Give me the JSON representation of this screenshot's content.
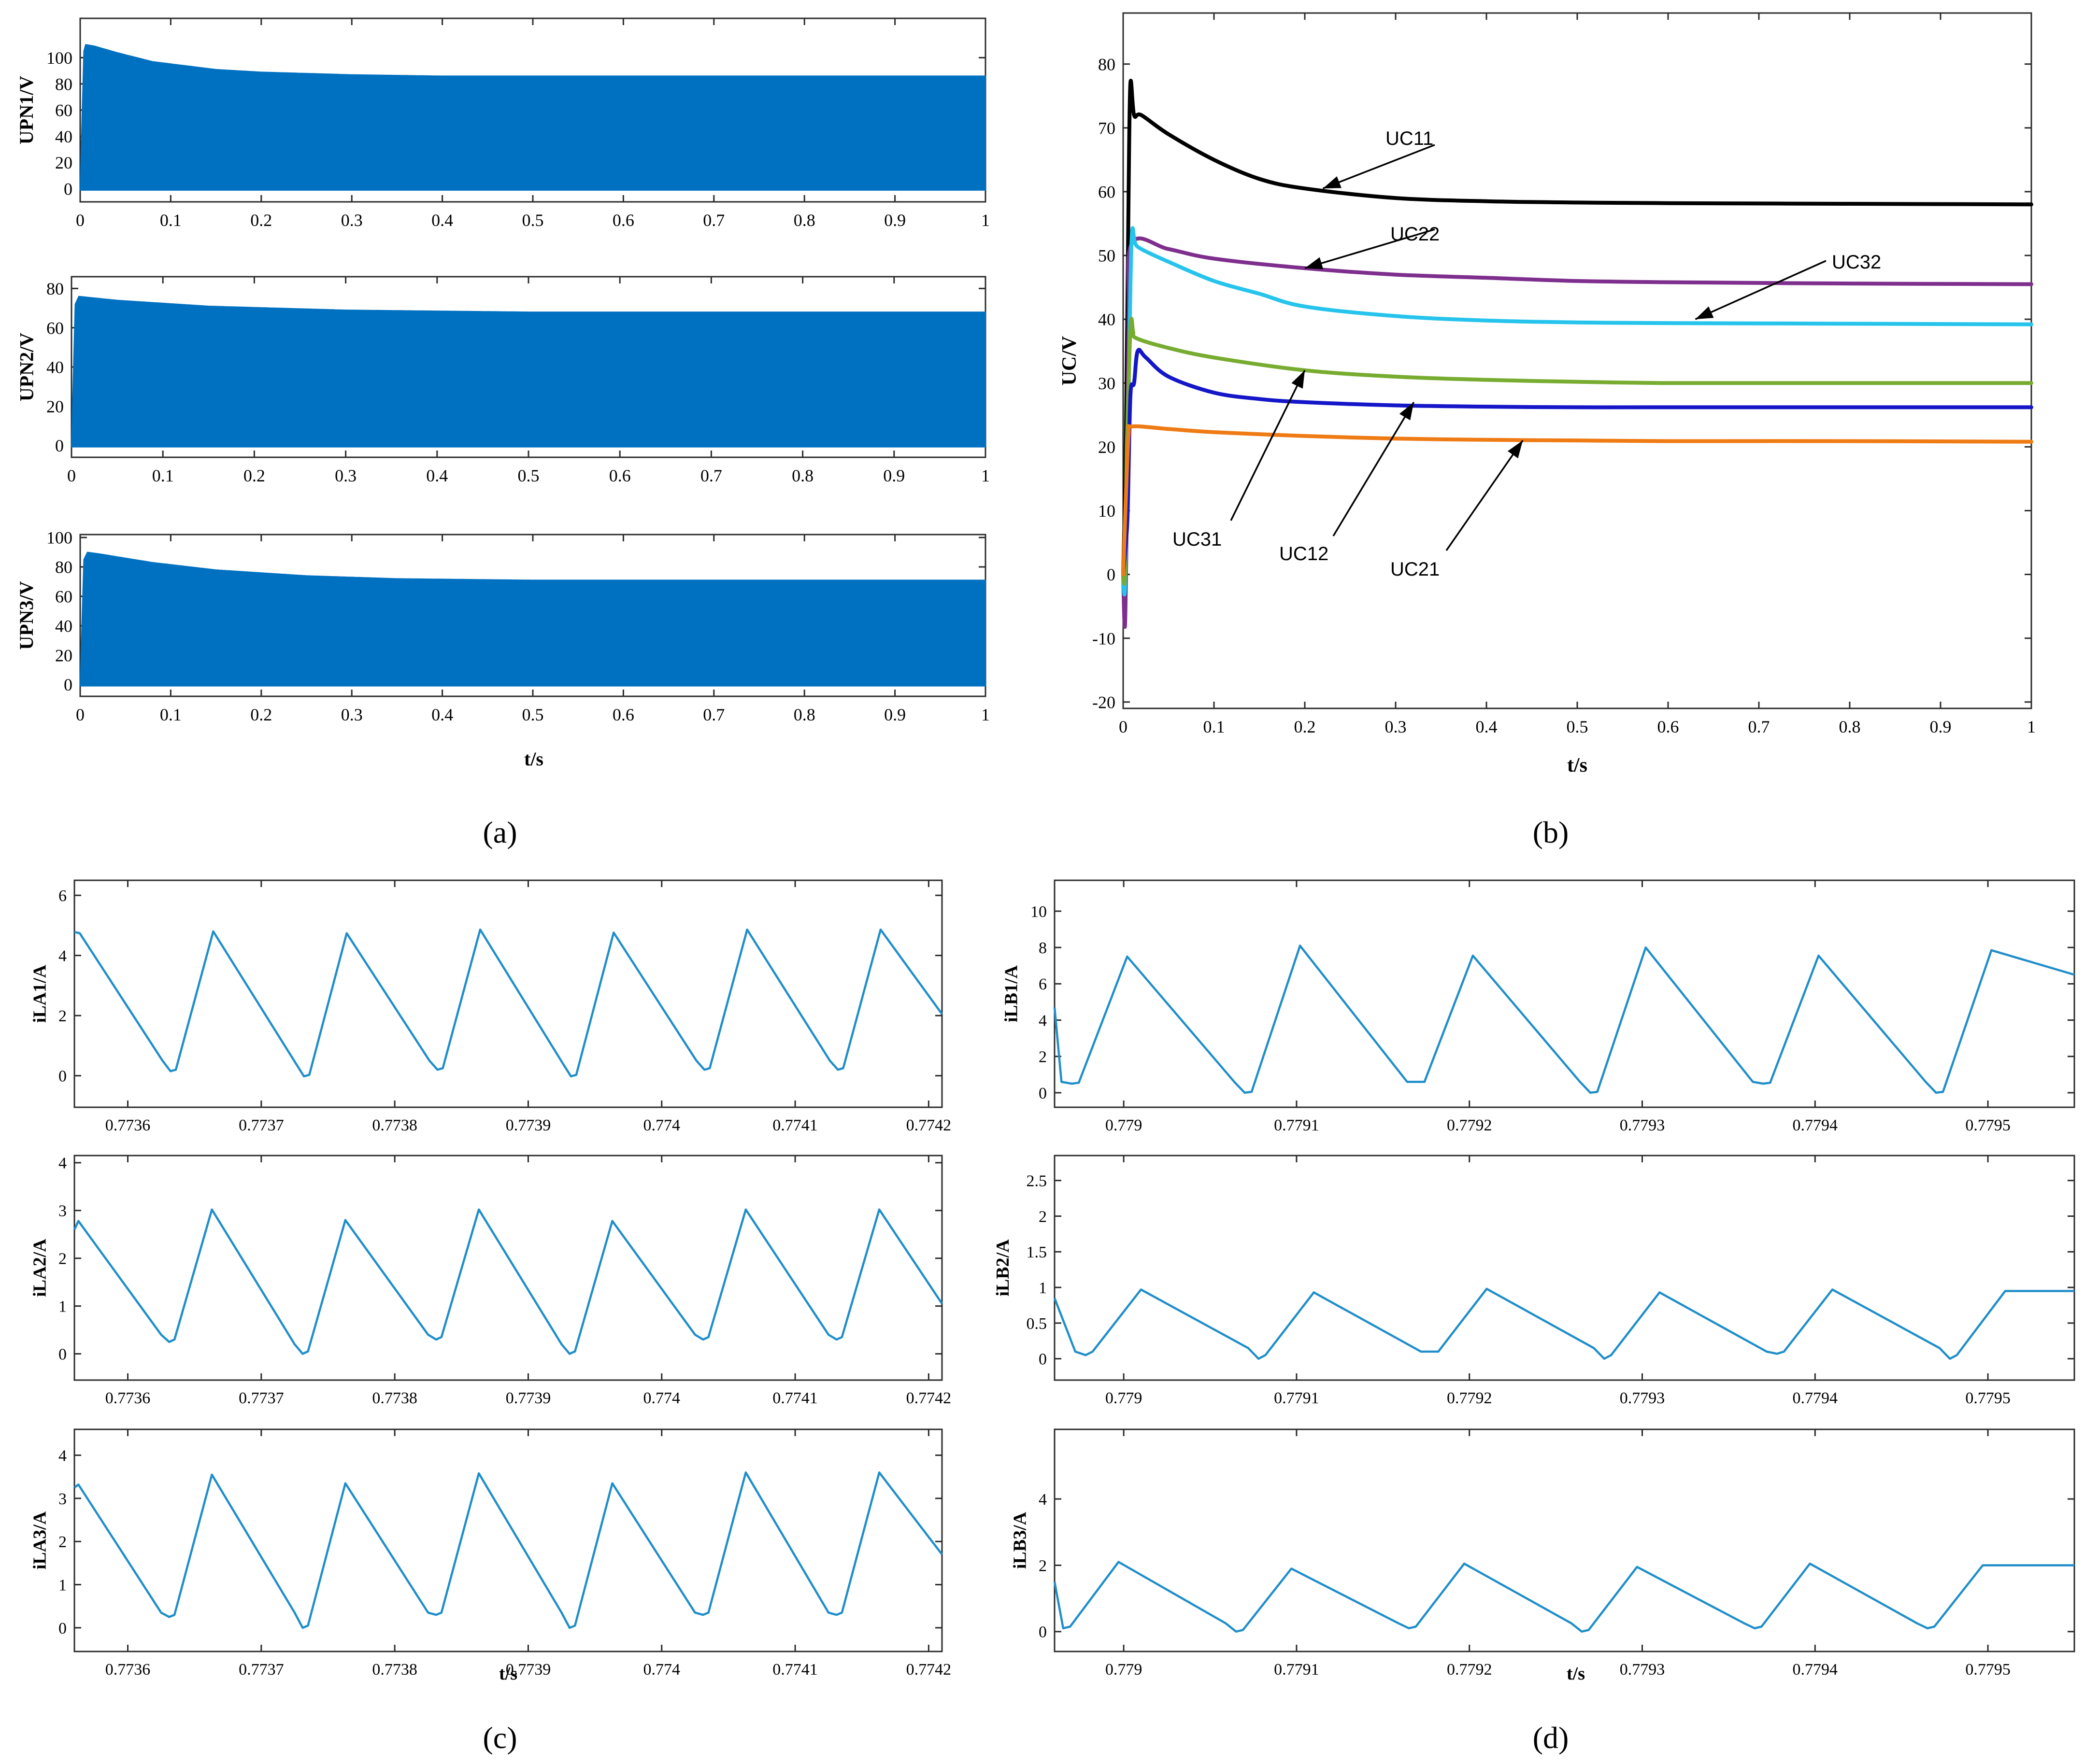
{
  "colors": {
    "fill_blue": "#0070c0",
    "trace_blue": "#1f8ec9",
    "uc11": "#000000",
    "uc22": "#7e2f8e",
    "uc32": "#26c4ec",
    "uc31": "#77ac30",
    "uc12": "#1416c8",
    "uc21": "#ef7b15",
    "axis": "#2b2b2b"
  },
  "panel_labels": {
    "a": "(a)",
    "b": "(b)",
    "c": "(c)",
    "d": "(d)"
  },
  "chart_data": [
    {
      "id": "a1",
      "type": "area",
      "title": "",
      "ylabel": "UPN1/V",
      "xlabel": "",
      "xlim": [
        0,
        1
      ],
      "ylim": [
        -10,
        130
      ],
      "xticks": [
        0,
        0.1,
        0.2,
        0.3,
        0.4,
        0.5,
        0.6,
        0.7,
        0.8,
        0.9,
        1
      ],
      "xtick_labels": [
        "0",
        "0.1",
        "0.2",
        "0.3",
        "0.4",
        "0.5",
        "0.6",
        "0.7",
        "0.8",
        "0.9",
        "1"
      ],
      "yticks": [
        0,
        20,
        40,
        60,
        80,
        100
      ],
      "ytick_labels": [
        "0",
        "20",
        "40",
        "60",
        "80",
        "100"
      ],
      "envelope": {
        "upper": {
          "x": [
            0,
            0.004,
            0.006,
            0.015,
            0.04,
            0.08,
            0.15,
            0.2,
            0.3,
            0.4,
            0.5,
            1.0
          ],
          "y": [
            0,
            105,
            110,
            109,
            104,
            97,
            91,
            89,
            87,
            86,
            86,
            86
          ]
        },
        "lower": 0
      }
    },
    {
      "id": "a2",
      "type": "area",
      "title": "",
      "ylabel": "UPN2/V",
      "xlabel": "",
      "xlim": [
        0,
        1
      ],
      "ylim": [
        -6,
        86
      ],
      "xticks": [
        0,
        0.1,
        0.2,
        0.3,
        0.4,
        0.5,
        0.6,
        0.7,
        0.8,
        0.9,
        1
      ],
      "xtick_labels": [
        "0",
        "0.1",
        "0.2",
        "0.3",
        "0.4",
        "0.5",
        "0.6",
        "0.7",
        "0.8",
        "0.9",
        "1"
      ],
      "yticks": [
        0,
        20,
        40,
        60,
        80
      ],
      "ytick_labels": [
        "0",
        "20",
        "40",
        "60",
        "80"
      ],
      "envelope": {
        "upper": {
          "x": [
            0,
            0.004,
            0.008,
            0.05,
            0.15,
            0.3,
            0.5,
            1.0
          ],
          "y": [
            0,
            72,
            76,
            74,
            71,
            69,
            68,
            68
          ]
        },
        "lower": 0
      }
    },
    {
      "id": "a3",
      "type": "area",
      "title": "",
      "ylabel": "UPN3/V",
      "xlabel": "t/s",
      "xlim": [
        0,
        1
      ],
      "ylim": [
        -8,
        102
      ],
      "xticks": [
        0,
        0.1,
        0.2,
        0.3,
        0.4,
        0.5,
        0.6,
        0.7,
        0.8,
        0.9,
        1
      ],
      "xtick_labels": [
        "0",
        "0.1",
        "0.2",
        "0.3",
        "0.4",
        "0.5",
        "0.6",
        "0.7",
        "0.8",
        "0.9",
        "1"
      ],
      "yticks": [
        0,
        20,
        40,
        60,
        80,
        100
      ],
      "ytick_labels": [
        "0",
        "20",
        "40",
        "60",
        "80",
        "100"
      ],
      "envelope": {
        "upper": {
          "x": [
            0,
            0.004,
            0.008,
            0.02,
            0.08,
            0.15,
            0.25,
            0.35,
            0.5,
            1.0
          ],
          "y": [
            0,
            85,
            90,
            89,
            83,
            78,
            74,
            72,
            71,
            71
          ]
        },
        "lower": 0
      }
    },
    {
      "id": "b",
      "type": "line",
      "title": "",
      "ylabel": "UC/V",
      "xlabel": "t/s",
      "xlim": [
        0,
        1
      ],
      "ylim": [
        -21,
        88
      ],
      "xticks": [
        0,
        0.1,
        0.2,
        0.3,
        0.4,
        0.5,
        0.6,
        0.7,
        0.8,
        0.9,
        1
      ],
      "xtick_labels": [
        "0",
        "0.1",
        "0.2",
        "0.3",
        "0.4",
        "0.5",
        "0.6",
        "0.7",
        "0.8",
        "0.9",
        "1"
      ],
      "yticks": [
        -20,
        -10,
        0,
        10,
        20,
        30,
        40,
        50,
        60,
        70,
        80
      ],
      "ytick_labels": [
        "-20",
        "-10",
        "0",
        "10",
        "20",
        "30",
        "40",
        "50",
        "60",
        "70",
        "80"
      ],
      "series": [
        {
          "name": "UC11",
          "color_key": "uc11",
          "x": [
            0,
            0.003,
            0.006,
            0.008,
            0.012,
            0.02,
            0.05,
            0.1,
            0.15,
            0.2,
            0.3,
            0.4,
            0.5,
            0.6,
            0.8,
            1.0
          ],
          "y": [
            0,
            20,
            60,
            77,
            72,
            72,
            69,
            65,
            62,
            60.5,
            59,
            58.5,
            58.3,
            58.2,
            58.1,
            58
          ]
        },
        {
          "name": "UC22",
          "color_key": "uc22",
          "x": [
            0,
            0.002,
            0.004,
            0.006,
            0.01,
            0.05,
            0.1,
            0.2,
            0.3,
            0.4,
            0.5,
            0.6,
            0.8,
            1.0
          ],
          "y": [
            0,
            -8,
            10,
            40,
            52,
            51,
            49.5,
            48,
            47,
            46.5,
            46,
            45.8,
            45.6,
            45.5
          ]
        },
        {
          "name": "UC32",
          "color_key": "uc32",
          "x": [
            0,
            0.002,
            0.005,
            0.008,
            0.01,
            0.013,
            0.02,
            0.05,
            0.1,
            0.15,
            0.2,
            0.3,
            0.4,
            0.5,
            0.6,
            0.8,
            1.0
          ],
          "y": [
            0,
            -2,
            20,
            45,
            54,
            52,
            51,
            49,
            46,
            44,
            42,
            40.5,
            39.8,
            39.5,
            39.4,
            39.3,
            39.2
          ]
        },
        {
          "name": "UC31",
          "color_key": "uc31",
          "x": [
            0,
            0.002,
            0.004,
            0.007,
            0.009,
            0.011,
            0.015,
            0.05,
            0.1,
            0.2,
            0.3,
            0.4,
            0.5,
            0.6,
            0.8,
            1.0
          ],
          "y": [
            0,
            0,
            20,
            35,
            40,
            38,
            37,
            35.5,
            34,
            32,
            31,
            30.5,
            30.2,
            30,
            30,
            30
          ]
        },
        {
          "name": "UC12",
          "color_key": "uc12",
          "x": [
            0,
            0.003,
            0.005,
            0.008,
            0.012,
            0.016,
            0.025,
            0.05,
            0.1,
            0.15,
            0.2,
            0.3,
            0.4,
            0.5,
            0.6,
            0.8,
            1.0
          ],
          "y": [
            0,
            5,
            10,
            28,
            30,
            35,
            34,
            31,
            28.5,
            27.5,
            27,
            26.5,
            26.3,
            26.2,
            26.2,
            26.2,
            26.2
          ]
        },
        {
          "name": "UC21",
          "color_key": "uc21",
          "x": [
            0,
            0.003,
            0.006,
            0.01,
            0.05,
            0.1,
            0.2,
            0.3,
            0.4,
            0.5,
            0.6,
            0.8,
            1.0
          ],
          "y": [
            0,
            12,
            22,
            23.2,
            22.8,
            22.3,
            21.7,
            21.3,
            21.1,
            21,
            20.9,
            20.9,
            20.8
          ]
        }
      ],
      "annotations": [
        {
          "text": "UC11",
          "points_to": [
            0.22,
            60.5
          ]
        },
        {
          "text": "UC22",
          "points_to": [
            0.2,
            48
          ]
        },
        {
          "text": "UC32",
          "points_to": [
            0.63,
            40
          ]
        },
        {
          "text": "UC31",
          "points_to": [
            0.2,
            32
          ]
        },
        {
          "text": "UC12",
          "points_to": [
            0.32,
            27
          ]
        },
        {
          "text": "UC21",
          "points_to": [
            0.44,
            21
          ]
        }
      ]
    },
    {
      "id": "c1",
      "type": "line",
      "title": "",
      "ylabel": "iLA1/A",
      "xlabel": "",
      "xlim": [
        0.77356,
        0.77421
      ],
      "ylim": [
        -1.05,
        6.5
      ],
      "xticks": [
        0.7736,
        0.7737,
        0.7738,
        0.7739,
        0.774,
        0.7741,
        0.7742
      ],
      "xtick_labels": [
        "0.7736",
        "0.7737",
        "0.7738",
        "0.7739",
        "0.774",
        "0.7741",
        "0.7742"
      ],
      "yticks": [
        0,
        2,
        4,
        6
      ],
      "ytick_labels": [
        "0",
        "2",
        "4",
        "6"
      ],
      "wave": {
        "t0": 0.77356,
        "period": 0.0001,
        "phase_offset": 4e-06,
        "v_start": 4.78,
        "v_end": 2.05,
        "peaks": [
          4.74,
          4.8,
          4.74,
          4.86,
          4.76,
          4.86
        ],
        "valleys": [
          -0.02,
          0.15,
          -0.02,
          0.2,
          -0.02,
          0.2
        ],
        "kink_values": [
          0.45,
          0.5,
          0.4,
          0.5,
          0.4,
          0.5
        ]
      }
    },
    {
      "id": "c2",
      "type": "line",
      "title": "",
      "ylabel": "iLA2/A",
      "xlabel": "",
      "xlim": [
        0.77356,
        0.77421
      ],
      "ylim": [
        -0.55,
        4.15
      ],
      "xticks": [
        0.7736,
        0.7737,
        0.7738,
        0.7739,
        0.774,
        0.7741,
        0.7742
      ],
      "xtick_labels": [
        "0.7736",
        "0.7737",
        "0.7738",
        "0.7739",
        "0.774",
        "0.7741",
        "0.7742"
      ],
      "yticks": [
        0,
        1,
        2,
        3,
        4
      ],
      "ytick_labels": [
        "0",
        "1",
        "2",
        "3",
        "4"
      ],
      "wave": {
        "t0": 0.77356,
        "period": 0.0001,
        "phase_offset": 3e-06,
        "v_start": 2.6,
        "v_end": 1.05,
        "peaks": [
          2.78,
          3.02,
          2.8,
          3.02,
          2.78,
          3.02
        ],
        "valleys": [
          0.0,
          0.25,
          0.0,
          0.3,
          0.0,
          0.3
        ],
        "kink_values": [
          0.2,
          0.4,
          0.2,
          0.4,
          0.2,
          0.4
        ]
      }
    },
    {
      "id": "c3",
      "type": "line",
      "title": "",
      "ylabel": "iLA3/A",
      "xlabel": "t/s",
      "xlim": [
        0.77356,
        0.77421
      ],
      "ylim": [
        -0.55,
        4.6
      ],
      "xticks": [
        0.7736,
        0.7737,
        0.7738,
        0.7739,
        0.774,
        0.7741,
        0.7742
      ],
      "xtick_labels": [
        "0.7736",
        "0.7737",
        "0.7738",
        "0.7739",
        "0.774",
        "0.7741",
        "0.7742"
      ],
      "yticks": [
        0,
        1,
        2,
        3,
        4
      ],
      "ytick_labels": [
        "0",
        "1",
        "2",
        "3",
        "4"
      ],
      "wave": {
        "t0": 0.77356,
        "period": 0.0001,
        "phase_offset": 3e-06,
        "v_start": 3.25,
        "v_end": 1.7,
        "peaks": [
          3.32,
          3.55,
          3.35,
          3.58,
          3.35,
          3.6
        ],
        "valleys": [
          0.0,
          0.25,
          0.0,
          0.3,
          0.0,
          0.3
        ],
        "kink_values": [
          0.35,
          0.35,
          0.35,
          0.35,
          0.35,
          0.35
        ]
      }
    },
    {
      "id": "d1",
      "type": "line",
      "title": "",
      "ylabel": "iLB1/A",
      "xlabel": "",
      "xlim": [
        0.77896,
        0.77955
      ],
      "ylim": [
        -0.8,
        11.7
      ],
      "xticks": [
        0.779,
        0.7791,
        0.7792,
        0.7793,
        0.7794,
        0.7795
      ],
      "xtick_labels": [
        "0.779",
        "0.7791",
        "0.7792",
        "0.7793",
        "0.7794",
        "0.7795"
      ],
      "yticks": [
        0,
        2,
        4,
        6,
        8,
        10
      ],
      "ytick_labels": [
        "0",
        "2",
        "4",
        "6",
        "8",
        "10"
      ],
      "wave": {
        "t0": 0.77896,
        "period": 0.0001,
        "phase_offset": -5.8e-05,
        "v_start": 4.7,
        "v_end": 6.5,
        "peaks": [
          7.5,
          8.1,
          7.55,
          8.0,
          7.55,
          7.85
        ],
        "valleys": [
          0.5,
          0.0,
          0.6,
          0.0,
          0.5,
          0.0
        ],
        "kink_values": [
          0.6,
          0.6,
          0.6,
          0.6,
          0.6,
          0.6
        ]
      }
    },
    {
      "id": "d2",
      "type": "line",
      "title": "",
      "ylabel": "iLB2/A",
      "xlabel": "",
      "xlim": [
        0.77896,
        0.77955
      ],
      "ylim": [
        -0.3,
        2.85
      ],
      "xticks": [
        0.779,
        0.7791,
        0.7792,
        0.7793,
        0.7794,
        0.7795
      ],
      "xtick_labels": [
        "0.779",
        "0.7791",
        "0.7792",
        "0.7793",
        "0.7794",
        "0.7795"
      ],
      "yticks": [
        0,
        0.5,
        1,
        1.5,
        2,
        2.5
      ],
      "ytick_labels": [
        "0",
        "0.5",
        "1",
        "1.5",
        "2",
        "2.5"
      ],
      "wave": {
        "t0": 0.77896,
        "period": 0.0001,
        "phase_offset": -5e-05,
        "v_start": 0.85,
        "v_end": 0.95,
        "peaks": [
          0.97,
          0.93,
          0.98,
          0.93,
          0.97,
          0.95
        ],
        "valleys": [
          0.05,
          0.0,
          0.1,
          0.0,
          0.07,
          0.0
        ],
        "kink_values": [
          0.1,
          0.15,
          0.1,
          0.15,
          0.1,
          0.15
        ]
      }
    },
    {
      "id": "d3",
      "type": "line",
      "title": "",
      "ylabel": "iLB3/A",
      "xlabel": "t/s",
      "xlim": [
        0.77896,
        0.77955
      ],
      "ylim": [
        -0.6,
        6.1
      ],
      "xticks": [
        0.779,
        0.7791,
        0.7792,
        0.7793,
        0.7794,
        0.7795
      ],
      "xtick_labels": [
        "0.779",
        "0.7791",
        "0.7792",
        "0.7793",
        "0.7794",
        "0.7795"
      ],
      "yticks": [
        0,
        2,
        4
      ],
      "ytick_labels": [
        "0",
        "2",
        "4"
      ],
      "wave": {
        "t0": 0.77896,
        "period": 0.0001,
        "phase_offset": -6.3e-05,
        "v_start": 1.5,
        "v_end": 2.0,
        "peaks": [
          2.1,
          1.9,
          2.05,
          1.95,
          2.05,
          2.0
        ],
        "valleys": [
          0.1,
          0.0,
          0.1,
          0.0,
          0.1,
          0.1
        ],
        "kink_values": [
          0.25,
          0.25,
          0.25,
          0.25,
          0.25,
          0.25
        ]
      }
    }
  ]
}
